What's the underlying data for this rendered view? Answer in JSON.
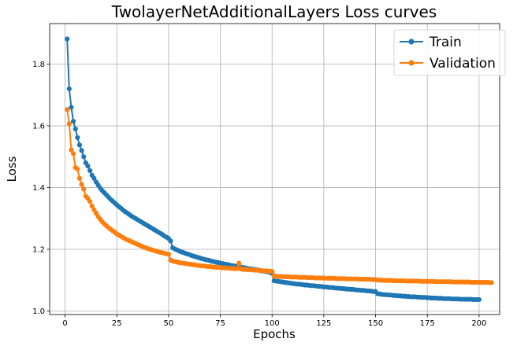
{
  "chart_data": {
    "type": "line",
    "title": "TwolayerNetAdditionalLayers Loss curves",
    "xlabel": "Epochs",
    "ylabel": "Loss",
    "xlim": [
      -7.45,
      209.95
    ],
    "ylim": [
      0.9885,
      1.9315
    ],
    "xticks": [
      0,
      25,
      50,
      75,
      100,
      125,
      150,
      175,
      200
    ],
    "xtick_labels": [
      "0",
      "25",
      "50",
      "75",
      "100",
      "125",
      "150",
      "175",
      "200"
    ],
    "yticks": [
      1.0,
      1.2,
      1.4,
      1.6,
      1.8
    ],
    "ytick_labels": [
      "1.0",
      "1.2",
      "1.4",
      "1.6",
      "1.8"
    ],
    "grid": true,
    "legend_position": "top-right",
    "x_start": 1,
    "series": [
      {
        "name": "Train",
        "color": "#1f77b4",
        "values": [
          1.882,
          1.72,
          1.66,
          1.615,
          1.59,
          1.562,
          1.538,
          1.52,
          1.5,
          1.48,
          1.47,
          1.455,
          1.44,
          1.43,
          1.418,
          1.408,
          1.398,
          1.39,
          1.383,
          1.376,
          1.369,
          1.362,
          1.356,
          1.35,
          1.344,
          1.338,
          1.333,
          1.327,
          1.322,
          1.318,
          1.313,
          1.308,
          1.304,
          1.3,
          1.296,
          1.292,
          1.288,
          1.284,
          1.28,
          1.276,
          1.272,
          1.268,
          1.264,
          1.26,
          1.256,
          1.252,
          1.248,
          1.243,
          1.239,
          1.235,
          1.227,
          1.205,
          1.201,
          1.198,
          1.195,
          1.192,
          1.19,
          1.187,
          1.185,
          1.183,
          1.18,
          1.178,
          1.176,
          1.174,
          1.172,
          1.17,
          1.168,
          1.166,
          1.165,
          1.163,
          1.161,
          1.16,
          1.158,
          1.157,
          1.155,
          1.154,
          1.152,
          1.151,
          1.15,
          1.148,
          1.147,
          1.146,
          1.144,
          1.143,
          1.142,
          1.141,
          1.14,
          1.138,
          1.137,
          1.136,
          1.135,
          1.134,
          1.133,
          1.132,
          1.13,
          1.129,
          1.128,
          1.127,
          1.125,
          1.122,
          1.098,
          1.097,
          1.096,
          1.095,
          1.094,
          1.093,
          1.092,
          1.091,
          1.09,
          1.089,
          1.088,
          1.087,
          1.087,
          1.086,
          1.085,
          1.084,
          1.084,
          1.083,
          1.082,
          1.082,
          1.081,
          1.08,
          1.08,
          1.079,
          1.078,
          1.078,
          1.077,
          1.076,
          1.076,
          1.075,
          1.074,
          1.074,
          1.073,
          1.073,
          1.072,
          1.071,
          1.071,
          1.07,
          1.07,
          1.069,
          1.068,
          1.068,
          1.067,
          1.067,
          1.066,
          1.065,
          1.065,
          1.064,
          1.063,
          1.063,
          1.056,
          1.055,
          1.054,
          1.053,
          1.053,
          1.052,
          1.052,
          1.051,
          1.05,
          1.05,
          1.049,
          1.049,
          1.048,
          1.048,
          1.047,
          1.047,
          1.046,
          1.046,
          1.046,
          1.045,
          1.045,
          1.044,
          1.044,
          1.044,
          1.043,
          1.043,
          1.042,
          1.042,
          1.042,
          1.041,
          1.041,
          1.041,
          1.04,
          1.04,
          1.04,
          1.04,
          1.039,
          1.039,
          1.039,
          1.039,
          1.038,
          1.038,
          1.038,
          1.038,
          1.038,
          1.038,
          1.037,
          1.037,
          1.037,
          1.037
        ]
      },
      {
        "name": "Validation",
        "color": "#ff7f0e",
        "values": [
          1.653,
          1.607,
          1.522,
          1.51,
          1.465,
          1.46,
          1.43,
          1.41,
          1.395,
          1.372,
          1.365,
          1.355,
          1.34,
          1.328,
          1.317,
          1.306,
          1.297,
          1.289,
          1.282,
          1.276,
          1.27,
          1.265,
          1.26,
          1.255,
          1.25,
          1.246,
          1.242,
          1.238,
          1.234,
          1.231,
          1.228,
          1.225,
          1.222,
          1.219,
          1.216,
          1.213,
          1.21,
          1.207,
          1.205,
          1.202,
          1.2,
          1.198,
          1.196,
          1.194,
          1.192,
          1.19,
          1.189,
          1.187,
          1.185,
          1.184,
          1.165,
          1.162,
          1.16,
          1.159,
          1.157,
          1.156,
          1.155,
          1.154,
          1.153,
          1.152,
          1.151,
          1.15,
          1.149,
          1.148,
          1.147,
          1.146,
          1.146,
          1.145,
          1.144,
          1.144,
          1.143,
          1.142,
          1.142,
          1.141,
          1.141,
          1.14,
          1.14,
          1.139,
          1.139,
          1.138,
          1.138,
          1.137,
          1.137,
          1.155,
          1.136,
          1.135,
          1.135,
          1.134,
          1.134,
          1.133,
          1.133,
          1.132,
          1.132,
          1.131,
          1.131,
          1.13,
          1.13,
          1.129,
          1.129,
          1.128,
          1.113,
          1.113,
          1.112,
          1.112,
          1.112,
          1.111,
          1.111,
          1.111,
          1.11,
          1.11,
          1.11,
          1.11,
          1.109,
          1.109,
          1.109,
          1.109,
          1.108,
          1.108,
          1.108,
          1.108,
          1.107,
          1.107,
          1.107,
          1.107,
          1.107,
          1.106,
          1.106,
          1.106,
          1.106,
          1.106,
          1.105,
          1.105,
          1.105,
          1.105,
          1.105,
          1.104,
          1.104,
          1.104,
          1.104,
          1.104,
          1.104,
          1.103,
          1.103,
          1.103,
          1.103,
          1.103,
          1.103,
          1.102,
          1.102,
          1.102,
          1.1,
          1.1,
          1.1,
          1.099,
          1.099,
          1.099,
          1.099,
          1.099,
          1.098,
          1.098,
          1.098,
          1.098,
          1.098,
          1.098,
          1.097,
          1.097,
          1.097,
          1.097,
          1.097,
          1.097,
          1.097,
          1.096,
          1.096,
          1.096,
          1.096,
          1.096,
          1.096,
          1.096,
          1.095,
          1.095,
          1.095,
          1.095,
          1.095,
          1.095,
          1.095,
          1.095,
          1.094,
          1.094,
          1.094,
          1.094,
          1.094,
          1.094,
          1.094,
          1.094,
          1.094,
          1.093,
          1.093,
          1.093,
          1.093,
          1.093,
          1.093,
          1.093,
          1.093,
          1.093,
          1.092,
          1.092
        ]
      }
    ]
  }
}
